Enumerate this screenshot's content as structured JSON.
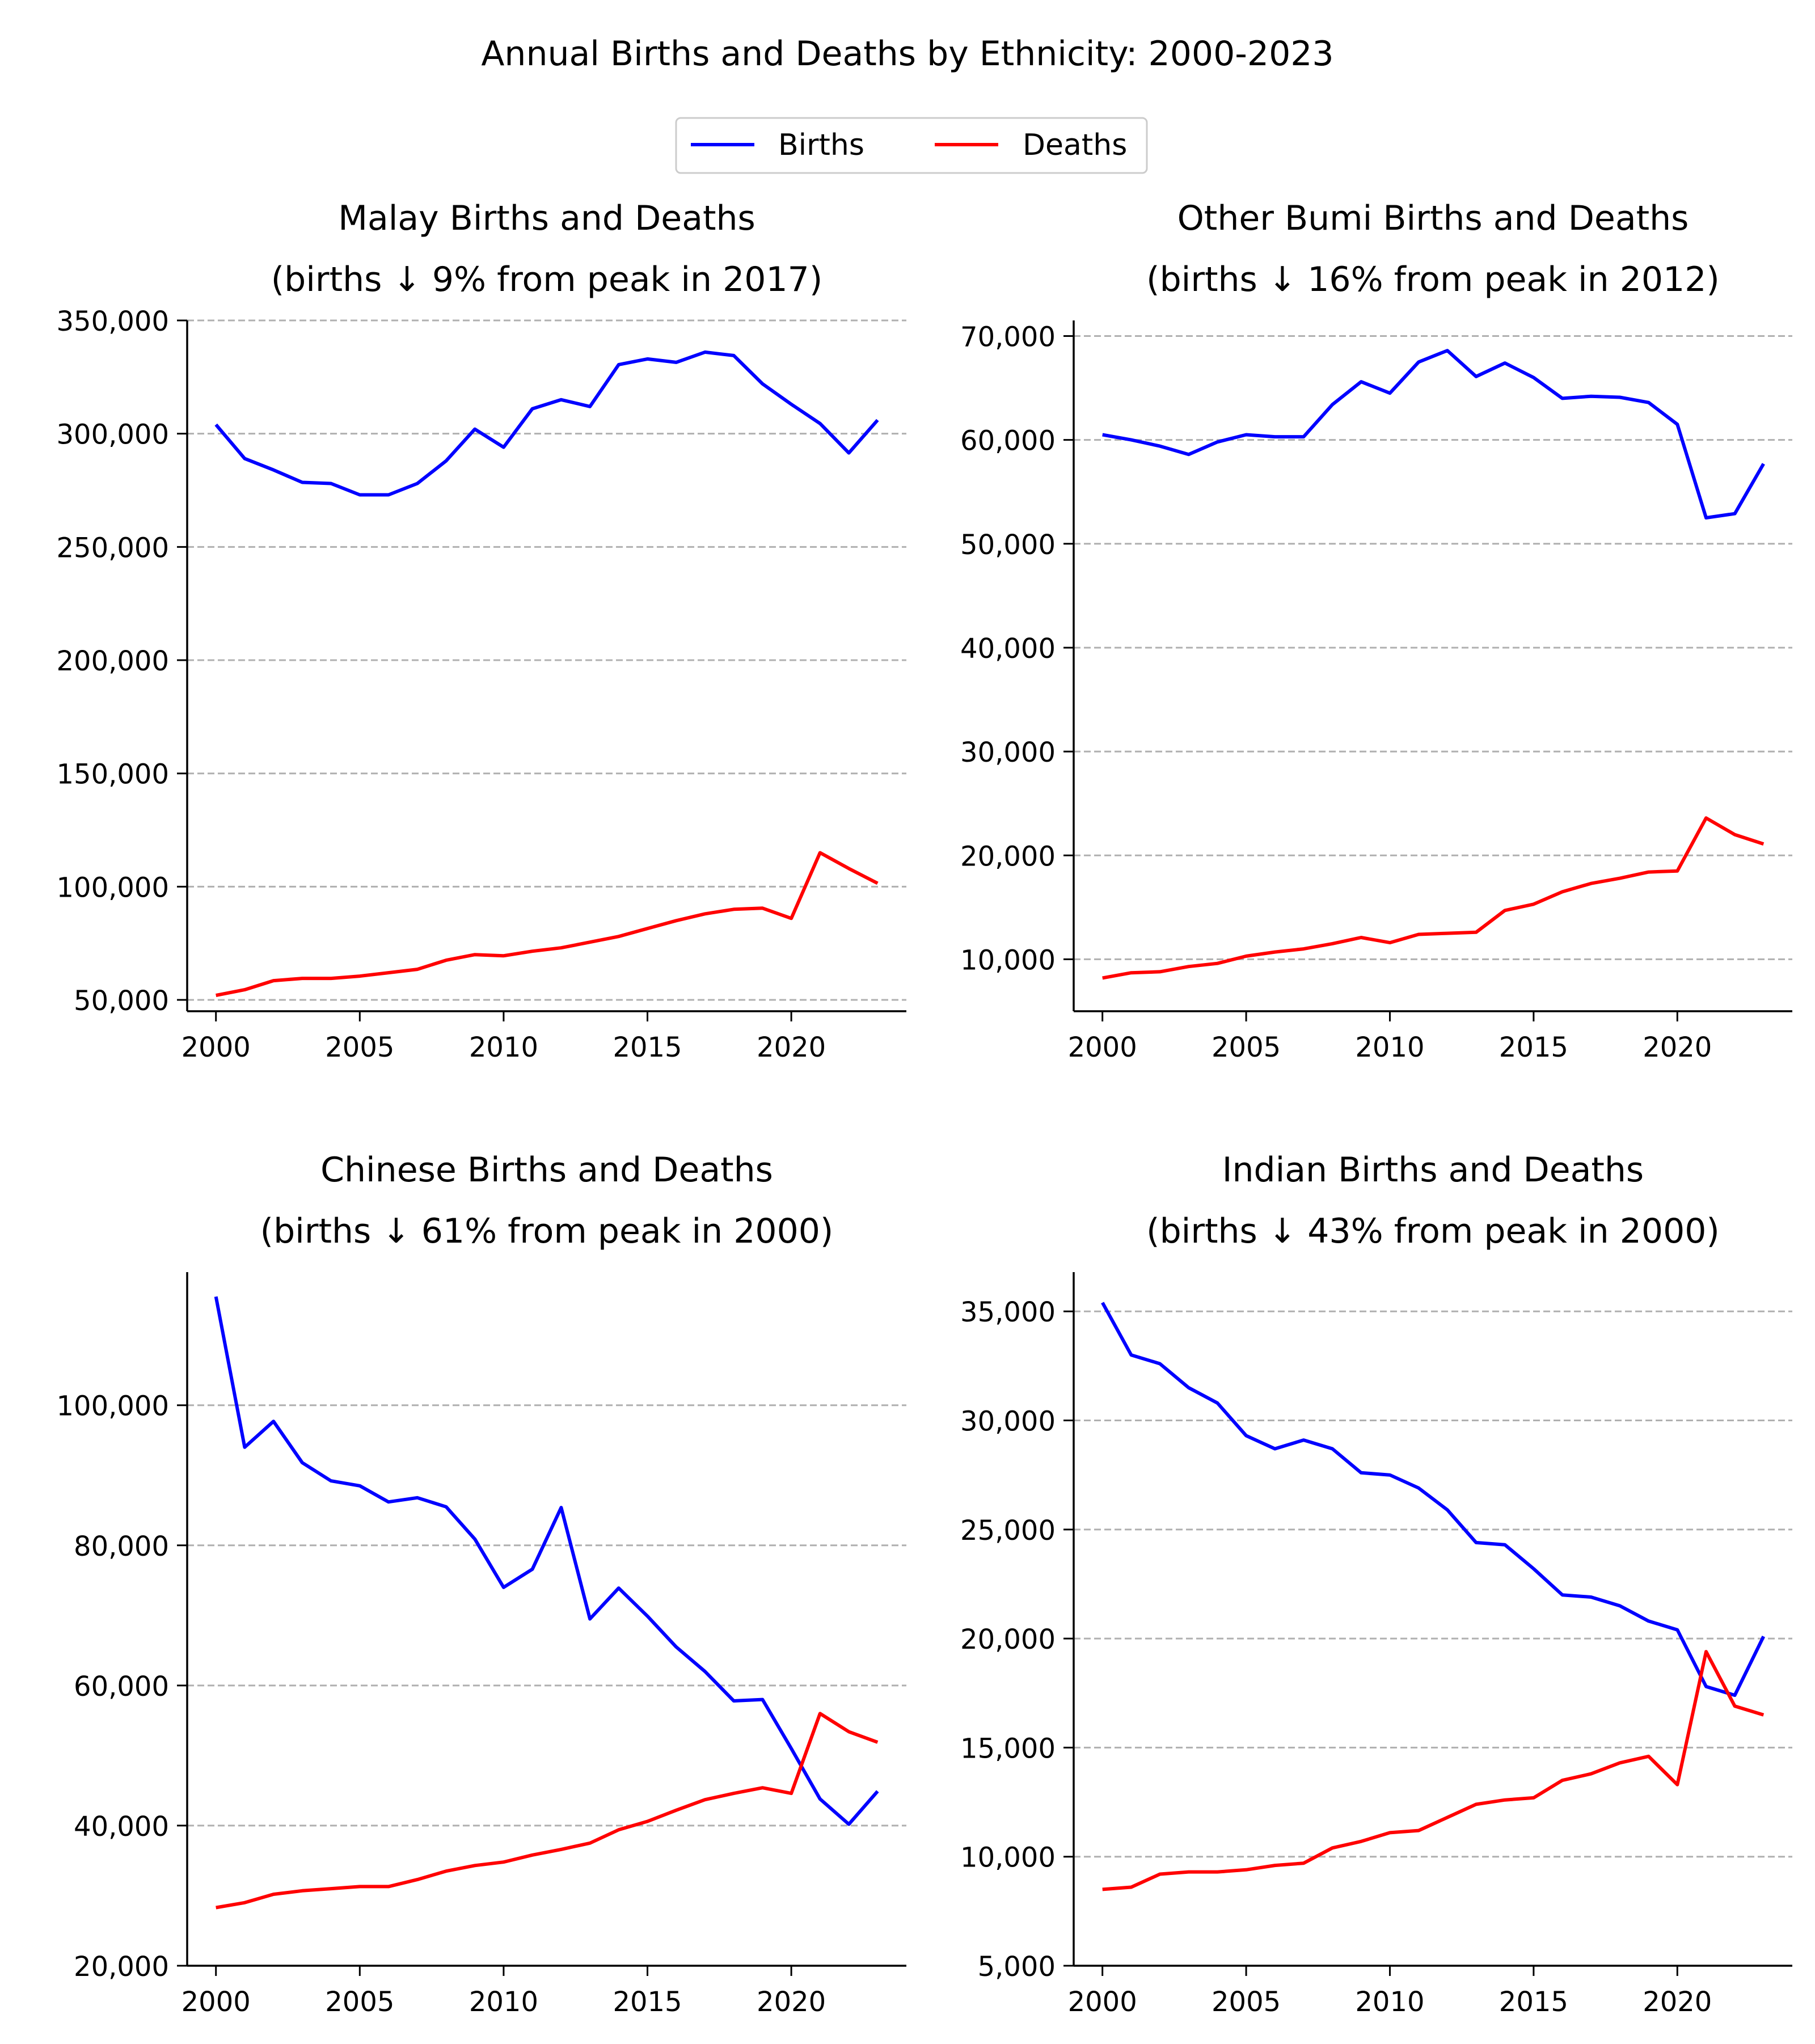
{
  "figure": {
    "title": "Annual Births and Deaths by Ethnicity: 2000-2023",
    "legend": {
      "placement": "top-center",
      "entries": [
        {
          "label": "Births",
          "color": "#0000ff"
        },
        {
          "label": "Deaths",
          "color": "#ff0000"
        }
      ]
    },
    "colors": {
      "births": "#0000ff",
      "deaths": "#ff0000",
      "grid": "#b0b0b0",
      "axis": "#000000"
    }
  },
  "chart_data": [
    {
      "type": "line",
      "title": "Malay Births and Deaths",
      "subtitle": "(births ↓ 9% from peak in 2017)",
      "xlim": [
        1999,
        2024
      ],
      "ylim": [
        45000,
        350000
      ],
      "xticks": [
        2000,
        2005,
        2010,
        2015,
        2020
      ],
      "xtick_labels": [
        "2000",
        "2005",
        "2010",
        "2015",
        "2020"
      ],
      "yticks": [
        50000,
        100000,
        150000,
        200000,
        250000,
        300000,
        350000
      ],
      "ytick_labels": [
        "50,000",
        "100,000",
        "150,000",
        "200,000",
        "250,000",
        "300,000",
        "350,000"
      ],
      "grid": "y-dashed",
      "x": [
        2000,
        2001,
        2002,
        2003,
        2004,
        2005,
        2006,
        2007,
        2008,
        2009,
        2010,
        2011,
        2012,
        2013,
        2014,
        2015,
        2016,
        2017,
        2018,
        2019,
        2020,
        2021,
        2022,
        2023
      ],
      "series": [
        {
          "name": "Births",
          "values": [
            304000,
            289000,
            284000,
            278500,
            278000,
            273000,
            273000,
            278000,
            288000,
            302000,
            294000,
            311000,
            315000,
            312000,
            330500,
            333000,
            331500,
            336000,
            334500,
            322000,
            313000,
            304500,
            291500,
            306000
          ]
        },
        {
          "name": "Deaths",
          "values": [
            52000,
            54500,
            58500,
            59500,
            59500,
            60500,
            62000,
            63500,
            67500,
            70000,
            69500,
            71500,
            73000,
            75500,
            78000,
            81500,
            85000,
            88000,
            90000,
            90500,
            86000,
            115000,
            108000,
            101500
          ]
        }
      ]
    },
    {
      "type": "line",
      "title": "Other Bumi Births and Deaths",
      "subtitle": "(births ↓ 16% from peak in 2012)",
      "xlim": [
        1999,
        2024
      ],
      "ylim": [
        5000,
        71500
      ],
      "xticks": [
        2000,
        2005,
        2010,
        2015,
        2020
      ],
      "xtick_labels": [
        "2000",
        "2005",
        "2010",
        "2015",
        "2020"
      ],
      "yticks": [
        10000,
        20000,
        30000,
        40000,
        50000,
        60000,
        70000
      ],
      "ytick_labels": [
        "10,000",
        "20,000",
        "30,000",
        "40,000",
        "50,000",
        "60,000",
        "70,000"
      ],
      "grid": "y-dashed",
      "x": [
        2000,
        2001,
        2002,
        2003,
        2004,
        2005,
        2006,
        2007,
        2008,
        2009,
        2010,
        2011,
        2012,
        2013,
        2014,
        2015,
        2016,
        2017,
        2018,
        2019,
        2020,
        2021,
        2022,
        2023
      ],
      "series": [
        {
          "name": "Births",
          "values": [
            60500,
            60000,
            59400,
            58600,
            59800,
            60500,
            60300,
            60300,
            63400,
            65600,
            64500,
            67500,
            68600,
            66100,
            67400,
            66000,
            64000,
            64200,
            64100,
            63600,
            61500,
            52500,
            52900,
            57700
          ]
        },
        {
          "name": "Deaths",
          "values": [
            8200,
            8700,
            8800,
            9300,
            9600,
            10300,
            10700,
            11000,
            11500,
            12100,
            11600,
            12400,
            12500,
            12600,
            14700,
            15300,
            16500,
            17300,
            17800,
            18400,
            18500,
            23600,
            22000,
            21100
          ]
        }
      ]
    },
    {
      "type": "line",
      "title": "Chinese Births and Deaths",
      "subtitle": "(births ↓ 61% from peak in 2000)",
      "xlim": [
        1999,
        2024
      ],
      "ylim": [
        20000,
        119000
      ],
      "xticks": [
        2000,
        2005,
        2010,
        2015,
        2020
      ],
      "xtick_labels": [
        "2000",
        "2005",
        "2010",
        "2015",
        "2020"
      ],
      "yticks": [
        20000,
        40000,
        60000,
        80000,
        100000
      ],
      "ytick_labels": [
        "20,000",
        "40,000",
        "60,000",
        "80,000",
        "100,000"
      ],
      "grid": "y-dashed",
      "x": [
        2000,
        2001,
        2002,
        2003,
        2004,
        2005,
        2006,
        2007,
        2008,
        2009,
        2010,
        2011,
        2012,
        2013,
        2014,
        2015,
        2016,
        2017,
        2018,
        2019,
        2020,
        2021,
        2022,
        2023
      ],
      "series": [
        {
          "name": "Births",
          "values": [
            115500,
            94000,
            97700,
            91800,
            89200,
            88500,
            86200,
            86800,
            85500,
            80900,
            74000,
            76600,
            85400,
            69500,
            73900,
            69900,
            65500,
            62000,
            57800,
            58000,
            51000,
            43800,
            40200,
            44900
          ]
        },
        {
          "name": "Deaths",
          "values": [
            28300,
            29000,
            30200,
            30700,
            31000,
            31300,
            31300,
            32300,
            33500,
            34300,
            34800,
            35800,
            36600,
            37500,
            39400,
            40600,
            42200,
            43700,
            44600,
            45400,
            44600,
            56000,
            53400,
            51900
          ]
        }
      ]
    },
    {
      "type": "line",
      "title": "Indian Births and Deaths",
      "subtitle": "(births ↓ 43% from peak in 2000)",
      "xlim": [
        1999,
        2024
      ],
      "ylim": [
        5000,
        36800
      ],
      "xticks": [
        2000,
        2005,
        2010,
        2015,
        2020
      ],
      "xtick_labels": [
        "2000",
        "2005",
        "2010",
        "2015",
        "2020"
      ],
      "yticks": [
        5000,
        10000,
        15000,
        20000,
        25000,
        30000,
        35000
      ],
      "ytick_labels": [
        "5,000",
        "10,000",
        "15,000",
        "20,000",
        "25,000",
        "30,000",
        "35,000"
      ],
      "grid": "y-dashed",
      "x": [
        2000,
        2001,
        2002,
        2003,
        2004,
        2005,
        2006,
        2007,
        2008,
        2009,
        2010,
        2011,
        2012,
        2013,
        2014,
        2015,
        2016,
        2017,
        2018,
        2019,
        2020,
        2021,
        2022,
        2023
      ],
      "series": [
        {
          "name": "Births",
          "values": [
            35400,
            33000,
            32600,
            31500,
            30800,
            29300,
            28700,
            29100,
            28700,
            27600,
            27500,
            26900,
            25900,
            24400,
            24300,
            23200,
            22000,
            21900,
            21500,
            20800,
            20400,
            17800,
            17400,
            20100
          ]
        },
        {
          "name": "Deaths",
          "values": [
            8500,
            8600,
            9200,
            9300,
            9300,
            9400,
            9600,
            9700,
            10400,
            10700,
            11100,
            11200,
            11800,
            12400,
            12600,
            12700,
            13500,
            13800,
            14300,
            14600,
            13300,
            19400,
            16900,
            16500
          ]
        }
      ]
    }
  ]
}
